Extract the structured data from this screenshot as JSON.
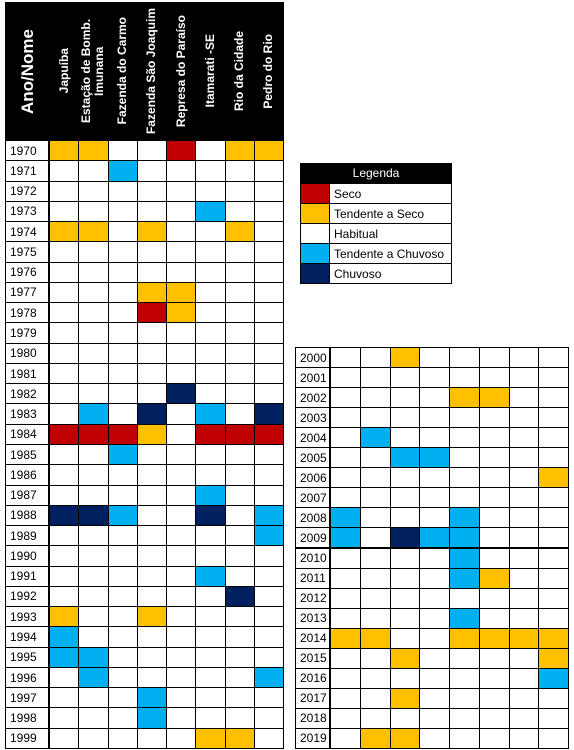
{
  "left_table": {
    "header": "Ano/Nome",
    "columns": [
      "Japuíba",
      "Estação de Bomb. Imunana",
      "Fazenda do Carmo",
      "Fazenda São Joaquim",
      "Represa do Paraíso",
      "Itamarati -SE",
      "Rio da Cidade",
      "Pedro do Rio"
    ],
    "rows": [
      {
        "year": "1970",
        "cells": [
          "#ffc000",
          "#ffc000",
          "#ffffff",
          "#ffffff",
          "#c00000",
          "#ffffff",
          "#ffc000",
          "#ffc000"
        ]
      },
      {
        "year": "1971",
        "cells": [
          "#ffffff",
          "#ffffff",
          "#00b0f0",
          "#ffffff",
          "#ffffff",
          "#ffffff",
          "#ffffff",
          "#ffffff"
        ]
      },
      {
        "year": "1972",
        "cells": [
          "#ffffff",
          "#ffffff",
          "#ffffff",
          "#ffffff",
          "#ffffff",
          "#ffffff",
          "#ffffff",
          "#ffffff"
        ]
      },
      {
        "year": "1973",
        "cells": [
          "#ffffff",
          "#ffffff",
          "#ffffff",
          "#ffffff",
          "#ffffff",
          "#00b0f0",
          "#ffffff",
          "#ffffff"
        ]
      },
      {
        "year": "1974",
        "cells": [
          "#ffc000",
          "#ffc000",
          "#ffffff",
          "#ffc000",
          "#ffffff",
          "#ffffff",
          "#ffc000",
          "#ffffff"
        ]
      },
      {
        "year": "1975",
        "cells": [
          "#ffffff",
          "#ffffff",
          "#ffffff",
          "#ffffff",
          "#ffffff",
          "#ffffff",
          "#ffffff",
          "#ffffff"
        ]
      },
      {
        "year": "1976",
        "cells": [
          "#ffffff",
          "#ffffff",
          "#ffffff",
          "#ffffff",
          "#ffffff",
          "#ffffff",
          "#ffffff",
          "#ffffff"
        ]
      },
      {
        "year": "1977",
        "cells": [
          "#ffffff",
          "#ffffff",
          "#ffffff",
          "#ffc000",
          "#ffc000",
          "#ffffff",
          "#ffffff",
          "#ffffff"
        ]
      },
      {
        "year": "1978",
        "cells": [
          "#ffffff",
          "#ffffff",
          "#ffffff",
          "#c00000",
          "#ffc000",
          "#ffffff",
          "#ffffff",
          "#ffffff"
        ]
      },
      {
        "year": "1979",
        "cells": [
          "#ffffff",
          "#ffffff",
          "#ffffff",
          "#ffffff",
          "#ffffff",
          "#ffffff",
          "#ffffff",
          "#ffffff"
        ]
      },
      {
        "year": "1980",
        "cells": [
          "#ffffff",
          "#ffffff",
          "#ffffff",
          "#ffffff",
          "#ffffff",
          "#ffffff",
          "#ffffff",
          "#ffffff"
        ]
      },
      {
        "year": "1981",
        "cells": [
          "#ffffff",
          "#ffffff",
          "#ffffff",
          "#ffffff",
          "#ffffff",
          "#ffffff",
          "#ffffff",
          "#ffffff"
        ]
      },
      {
        "year": "1982",
        "cells": [
          "#ffffff",
          "#ffffff",
          "#ffffff",
          "#ffffff",
          "#002060",
          "#ffffff",
          "#ffffff",
          "#ffffff"
        ]
      },
      {
        "year": "1983",
        "cells": [
          "#ffffff",
          "#00b0f0",
          "#ffffff",
          "#002060",
          "#ffffff",
          "#00b0f0",
          "#ffffff",
          "#002060"
        ]
      },
      {
        "year": "1984",
        "cells": [
          "#c00000",
          "#c00000",
          "#c00000",
          "#ffc000",
          "#ffffff",
          "#c00000",
          "#c00000",
          "#c00000"
        ]
      },
      {
        "year": "1985",
        "cells": [
          "#ffffff",
          "#ffffff",
          "#00b0f0",
          "#ffffff",
          "#ffffff",
          "#ffffff",
          "#ffffff",
          "#ffffff"
        ]
      },
      {
        "year": "1986",
        "cells": [
          "#ffffff",
          "#ffffff",
          "#ffffff",
          "#ffffff",
          "#ffffff",
          "#ffffff",
          "#ffffff",
          "#ffffff"
        ]
      },
      {
        "year": "1987",
        "cells": [
          "#ffffff",
          "#ffffff",
          "#ffffff",
          "#ffffff",
          "#ffffff",
          "#00b0f0",
          "#ffffff",
          "#ffffff"
        ]
      },
      {
        "year": "1988",
        "cells": [
          "#002060",
          "#002060",
          "#00b0f0",
          "#ffffff",
          "#ffffff",
          "#002060",
          "#ffffff",
          "#00b0f0"
        ]
      },
      {
        "year": "1989",
        "cells": [
          "#ffffff",
          "#ffffff",
          "#ffffff",
          "#ffffff",
          "#ffffff",
          "#ffffff",
          "#ffffff",
          "#00b0f0"
        ]
      },
      {
        "year": "1990",
        "cells": [
          "#ffffff",
          "#ffffff",
          "#ffffff",
          "#ffffff",
          "#ffffff",
          "#ffffff",
          "#ffffff",
          "#ffffff"
        ]
      },
      {
        "year": "1991",
        "cells": [
          "#ffffff",
          "#ffffff",
          "#ffffff",
          "#ffffff",
          "#ffffff",
          "#00b0f0",
          "#ffffff",
          "#ffffff"
        ]
      },
      {
        "year": "1992",
        "cells": [
          "#ffffff",
          "#ffffff",
          "#ffffff",
          "#ffffff",
          "#ffffff",
          "#ffffff",
          "#002060",
          "#ffffff"
        ]
      },
      {
        "year": "1993",
        "cells": [
          "#ffc000",
          "#ffffff",
          "#ffffff",
          "#ffc000",
          "#ffffff",
          "#ffffff",
          "#ffffff",
          "#ffffff"
        ]
      },
      {
        "year": "1994",
        "cells": [
          "#00b0f0",
          "#ffffff",
          "#ffffff",
          "#ffffff",
          "#ffffff",
          "#ffffff",
          "#ffffff",
          "#ffffff"
        ]
      },
      {
        "year": "1995",
        "cells": [
          "#00b0f0",
          "#00b0f0",
          "#ffffff",
          "#ffffff",
          "#ffffff",
          "#ffffff",
          "#ffffff",
          "#ffffff"
        ]
      },
      {
        "year": "1996",
        "cells": [
          "#ffffff",
          "#00b0f0",
          "#ffffff",
          "#ffffff",
          "#ffffff",
          "#ffffff",
          "#ffffff",
          "#00b0f0"
        ]
      },
      {
        "year": "1997",
        "cells": [
          "#ffffff",
          "#ffffff",
          "#ffffff",
          "#00b0f0",
          "#ffffff",
          "#ffffff",
          "#ffffff",
          "#ffffff"
        ]
      },
      {
        "year": "1998",
        "cells": [
          "#ffffff",
          "#ffffff",
          "#ffffff",
          "#00b0f0",
          "#ffffff",
          "#ffffff",
          "#ffffff",
          "#ffffff"
        ]
      },
      {
        "year": "1999",
        "cells": [
          "#ffffff",
          "#ffffff",
          "#ffffff",
          "#ffffff",
          "#ffffff",
          "#ffc000",
          "#ffc000",
          "#ffffff"
        ]
      }
    ]
  },
  "right_table": {
    "rows": [
      {
        "year": "2000",
        "cells": [
          "#ffffff",
          "#ffffff",
          "#ffc000",
          "#ffffff",
          "#ffffff",
          "#ffffff",
          "#ffffff",
          "#ffffff"
        ]
      },
      {
        "year": "2001",
        "cells": [
          "#ffffff",
          "#ffffff",
          "#ffffff",
          "#ffffff",
          "#ffffff",
          "#ffffff",
          "#ffffff",
          "#ffffff"
        ]
      },
      {
        "year": "2002",
        "cells": [
          "#ffffff",
          "#ffffff",
          "#ffffff",
          "#ffffff",
          "#ffc000",
          "#ffc000",
          "#ffffff",
          "#ffffff"
        ]
      },
      {
        "year": "2003",
        "cells": [
          "#ffffff",
          "#ffffff",
          "#ffffff",
          "#ffffff",
          "#ffffff",
          "#ffffff",
          "#ffffff",
          "#ffffff"
        ]
      },
      {
        "year": "2004",
        "cells": [
          "#ffffff",
          "#00b0f0",
          "#ffffff",
          "#ffffff",
          "#ffffff",
          "#ffffff",
          "#ffffff",
          "#ffffff"
        ]
      },
      {
        "year": "2005",
        "cells": [
          "#ffffff",
          "#ffffff",
          "#00b0f0",
          "#00b0f0",
          "#ffffff",
          "#ffffff",
          "#ffffff",
          "#ffffff"
        ]
      },
      {
        "year": "2006",
        "cells": [
          "#ffffff",
          "#ffffff",
          "#ffffff",
          "#ffffff",
          "#ffffff",
          "#ffffff",
          "#ffffff",
          "#ffc000"
        ]
      },
      {
        "year": "2007",
        "cells": [
          "#ffffff",
          "#ffffff",
          "#ffffff",
          "#ffffff",
          "#ffffff",
          "#ffffff",
          "#ffffff",
          "#ffffff"
        ]
      },
      {
        "year": "2008",
        "cells": [
          "#00b0f0",
          "#ffffff",
          "#ffffff",
          "#ffffff",
          "#00b0f0",
          "#ffffff",
          "#ffffff",
          "#ffffff"
        ]
      },
      {
        "year": "2009",
        "cells": [
          "#00b0f0",
          "#ffffff",
          "#002060",
          "#00b0f0",
          "#00b0f0",
          "#ffffff",
          "#ffffff",
          "#ffffff"
        ]
      },
      {
        "year": "2010",
        "cells": [
          "#ffffff",
          "#ffffff",
          "#ffffff",
          "#ffffff",
          "#00b0f0",
          "#ffffff",
          "#ffffff",
          "#ffffff"
        ]
      },
      {
        "year": "2011",
        "cells": [
          "#ffffff",
          "#ffffff",
          "#ffffff",
          "#ffffff",
          "#00b0f0",
          "#ffc000",
          "#ffffff",
          "#ffffff"
        ]
      },
      {
        "year": "2012",
        "cells": [
          "#ffffff",
          "#ffffff",
          "#ffffff",
          "#ffffff",
          "#ffffff",
          "#ffffff",
          "#ffffff",
          "#ffffff"
        ]
      },
      {
        "year": "2013",
        "cells": [
          "#ffffff",
          "#ffffff",
          "#ffffff",
          "#ffffff",
          "#00b0f0",
          "#ffffff",
          "#ffffff",
          "#ffffff"
        ]
      },
      {
        "year": "2014",
        "cells": [
          "#ffc000",
          "#ffc000",
          "#ffffff",
          "#ffffff",
          "#ffc000",
          "#ffc000",
          "#ffc000",
          "#ffc000"
        ]
      },
      {
        "year": "2015",
        "cells": [
          "#ffffff",
          "#ffffff",
          "#ffc000",
          "#ffffff",
          "#ffffff",
          "#ffffff",
          "#ffffff",
          "#ffc000"
        ]
      },
      {
        "year": "2016",
        "cells": [
          "#ffffff",
          "#ffffff",
          "#ffffff",
          "#ffffff",
          "#ffffff",
          "#ffffff",
          "#ffffff",
          "#00b0f0"
        ]
      },
      {
        "year": "2017",
        "cells": [
          "#ffffff",
          "#ffffff",
          "#ffc000",
          "#ffffff",
          "#ffffff",
          "#ffffff",
          "#ffffff",
          "#ffffff"
        ]
      },
      {
        "year": "2018",
        "cells": [
          "#ffffff",
          "#ffffff",
          "#ffffff",
          "#ffffff",
          "#ffffff",
          "#ffffff",
          "#ffffff",
          "#ffffff"
        ]
      },
      {
        "year": "2019",
        "cells": [
          "#ffffff",
          "#ffc000",
          "#ffc000",
          "#ffffff",
          "#ffffff",
          "#ffffff",
          "#ffffff",
          "#ffffff"
        ]
      }
    ]
  },
  "legend": {
    "title": "Legenda",
    "items": [
      {
        "label": "Seco",
        "color": "#c00000"
      },
      {
        "label": "Tendente a Seco",
        "color": "#ffc000"
      },
      {
        "label": "Habitual",
        "color": "#ffffff"
      },
      {
        "label": "Tendente a Chuvoso",
        "color": "#00b0f0"
      },
      {
        "label": "Chuvoso",
        "color": "#002060"
      }
    ]
  }
}
